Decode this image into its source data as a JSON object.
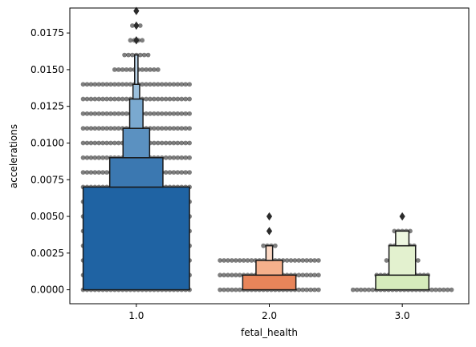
{
  "chart_data": {
    "type": "boxen",
    "xlabel": "fetal_health",
    "ylabel": "accelerations",
    "categories": [
      "1.0",
      "2.0",
      "3.0"
    ],
    "y_ticks": [
      "0.0000",
      "0.0025",
      "0.0050",
      "0.0075",
      "0.0100",
      "0.0125",
      "0.0150",
      "0.0175"
    ],
    "y_tick_values": [
      0,
      0.0025,
      0.005,
      0.0075,
      0.01,
      0.0125,
      0.015,
      0.0175
    ],
    "ylim": [
      -0.00095,
      0.0192
    ],
    "grid": false,
    "overlay": "swarm",
    "groups": [
      {
        "category": "1.0",
        "boxes": [
          {
            "lo": 0.0,
            "hi": 0.007,
            "width": 0.8,
            "color": "#1f63a3"
          },
          {
            "lo": 0.007,
            "hi": 0.009,
            "width": 0.4,
            "color": "#3b78b1"
          },
          {
            "lo": 0.009,
            "hi": 0.011,
            "width": 0.2,
            "color": "#5b91c1"
          },
          {
            "lo": 0.011,
            "hi": 0.013,
            "width": 0.1,
            "color": "#7aa9d0"
          },
          {
            "lo": 0.013,
            "hi": 0.014,
            "width": 0.05,
            "color": "#9bc0dd"
          },
          {
            "lo": 0.014,
            "hi": 0.016,
            "width": 0.025,
            "color": "#bdd6ea"
          }
        ],
        "outliers": [
          0.017,
          0.018,
          0.019
        ],
        "swarm_levels": [
          {
            "y": 0.0,
            "n": 28
          },
          {
            "y": 0.001,
            "n": 28
          },
          {
            "y": 0.002,
            "n": 28
          },
          {
            "y": 0.003,
            "n": 28
          },
          {
            "y": 0.004,
            "n": 28
          },
          {
            "y": 0.005,
            "n": 28
          },
          {
            "y": 0.006,
            "n": 28
          },
          {
            "y": 0.007,
            "n": 28
          },
          {
            "y": 0.008,
            "n": 28
          },
          {
            "y": 0.009,
            "n": 28
          },
          {
            "y": 0.01,
            "n": 28
          },
          {
            "y": 0.011,
            "n": 28
          },
          {
            "y": 0.012,
            "n": 28
          },
          {
            "y": 0.013,
            "n": 28
          },
          {
            "y": 0.014,
            "n": 28
          },
          {
            "y": 0.015,
            "n": 12
          },
          {
            "y": 0.016,
            "n": 7
          },
          {
            "y": 0.017,
            "n": 4
          },
          {
            "y": 0.018,
            "n": 3
          },
          {
            "y": 0.019,
            "n": 1
          }
        ]
      },
      {
        "category": "2.0",
        "boxes": [
          {
            "lo": 0.0,
            "hi": 0.001,
            "width": 0.4,
            "color": "#e8855a"
          },
          {
            "lo": 0.001,
            "hi": 0.002,
            "width": 0.2,
            "color": "#f5b08c"
          },
          {
            "lo": 0.002,
            "hi": 0.003,
            "width": 0.05,
            "color": "#fbd8c4"
          }
        ],
        "outliers": [
          0.004,
          0.005
        ],
        "swarm_levels": [
          {
            "y": 0.0,
            "n": 26
          },
          {
            "y": 0.001,
            "n": 26
          },
          {
            "y": 0.002,
            "n": 26
          },
          {
            "y": 0.003,
            "n": 4
          }
        ]
      },
      {
        "category": "3.0",
        "boxes": [
          {
            "lo": 0.0,
            "hi": 0.001,
            "width": 0.4,
            "color": "#d6ebbb"
          },
          {
            "lo": 0.001,
            "hi": 0.003,
            "width": 0.2,
            "color": "#e3f1cf"
          },
          {
            "lo": 0.003,
            "hi": 0.004,
            "width": 0.1,
            "color": "#eef7e1"
          }
        ],
        "outliers": [
          0.005
        ],
        "swarm_levels": [
          {
            "y": 0.0,
            "n": 26
          },
          {
            "y": 0.001,
            "n": 14
          },
          {
            "y": 0.002,
            "n": 9
          },
          {
            "y": 0.003,
            "n": 7
          },
          {
            "y": 0.004,
            "n": 5
          }
        ]
      }
    ]
  }
}
